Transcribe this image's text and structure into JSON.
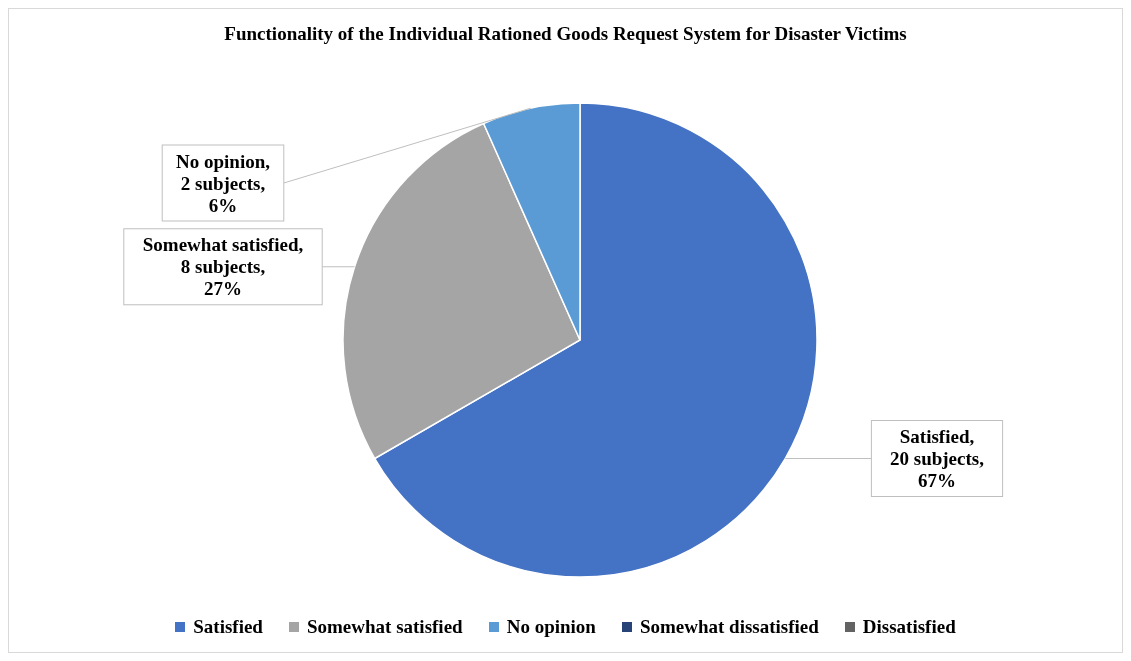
{
  "chart_data": {
    "type": "pie",
    "title": "Functionality of the Individual Rationed Goods Request System for Disaster Victims",
    "categories": [
      "Satisfied",
      "Somewhat satisfied",
      "No opinion",
      "Somewhat dissatisfied",
      "Dissatisfied"
    ],
    "values": [
      20,
      8,
      2,
      0,
      0
    ],
    "colors": [
      "#4472c4",
      "#a5a5a5",
      "#5b9bd5",
      "#264478",
      "#636363"
    ],
    "value_labels": [
      "Satisfied, 20 subjects, 67%",
      "Somewhat satisfied, 8 subjects, 27%",
      "No opinion, 2 subjects, 6%",
      null,
      null
    ],
    "legend": "bottom"
  }
}
